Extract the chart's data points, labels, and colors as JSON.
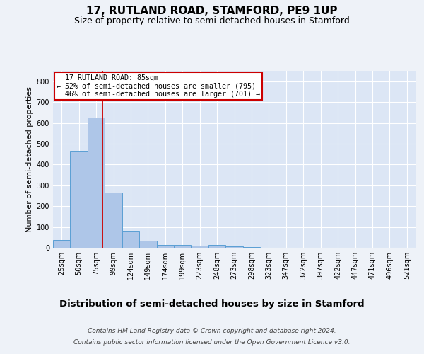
{
  "title1": "17, RUTLAND ROAD, STAMFORD, PE9 1UP",
  "title2": "Size of property relative to semi-detached houses in Stamford",
  "xlabel": "Distribution of semi-detached houses by size in Stamford",
  "ylabel": "Number of semi-detached properties",
  "categories": [
    "25sqm",
    "50sqm",
    "75sqm",
    "99sqm",
    "124sqm",
    "149sqm",
    "174sqm",
    "199sqm",
    "223sqm",
    "248sqm",
    "273sqm",
    "298sqm",
    "323sqm",
    "347sqm",
    "372sqm",
    "397sqm",
    "422sqm",
    "447sqm",
    "471sqm",
    "496sqm",
    "521sqm"
  ],
  "values": [
    37,
    465,
    625,
    265,
    83,
    33,
    15,
    13,
    10,
    13,
    8,
    5,
    0,
    0,
    0,
    0,
    0,
    0,
    0,
    0,
    0
  ],
  "bar_color": "#aec6e8",
  "bar_edge_color": "#5a9fd4",
  "bar_width": 1.0,
  "property_label": "17 RUTLAND ROAD: 85sqm",
  "pct_smaller": 52,
  "pct_smaller_count": 795,
  "pct_larger": 46,
  "pct_larger_count": 701,
  "vline_color": "#cc0000",
  "annotation_box_color": "#ffffff",
  "annotation_box_edge": "#cc0000",
  "ylim": [
    0,
    850
  ],
  "yticks": [
    0,
    100,
    200,
    300,
    400,
    500,
    600,
    700,
    800
  ],
  "footer1": "Contains HM Land Registry data © Crown copyright and database right 2024.",
  "footer2": "Contains public sector information licensed under the Open Government Licence v3.0.",
  "bg_color": "#eef2f8",
  "plot_bg_color": "#dce6f5",
  "grid_color": "#ffffff",
  "title1_fontsize": 11,
  "title2_fontsize": 9,
  "xlabel_fontsize": 9.5,
  "ylabel_fontsize": 8,
  "tick_fontsize": 7,
  "footer_fontsize": 6.5,
  "vline_x": 2.35
}
